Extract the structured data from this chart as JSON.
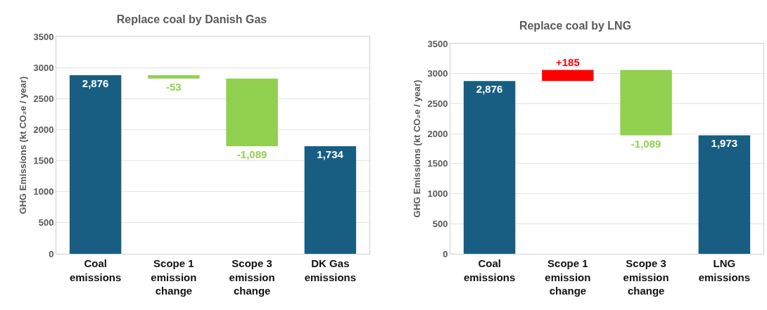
{
  "chart_data": [
    {
      "type": "bar",
      "title": "Replace coal by Danish Gas",
      "ylabel": "GHG Emissions (kt CO₂e / year)",
      "categories": [
        "Coal emissions",
        "Scope 1 emission change",
        "Scope 3 emission change",
        "DK Gas emissions"
      ],
      "values": [
        2876,
        -53,
        -1089,
        1734
      ],
      "base": [
        0,
        2876,
        2823,
        0
      ],
      "colors": [
        "#175e82",
        "#92d050",
        "#92d050",
        "#175e82"
      ],
      "value_labels": [
        "2,876",
        "-53",
        "-1,089",
        "1,734"
      ],
      "ylim": [
        0,
        3500
      ],
      "yticks": [
        0,
        500,
        1000,
        1500,
        2000,
        2500,
        3000,
        3500
      ],
      "grid": "y"
    },
    {
      "type": "bar",
      "title": "Replace coal by LNG",
      "ylabel": "GHG Emissions (kt CO₂e / year)",
      "categories": [
        "Coal emissions",
        "Scope 1 emission change",
        "Scope 3 emission change",
        "LNG emissions"
      ],
      "values": [
        2876,
        185,
        -1089,
        1973
      ],
      "base": [
        0,
        2876,
        3061,
        0
      ],
      "colors": [
        "#175e82",
        "#ff0000",
        "#92d050",
        "#175e82"
      ],
      "value_labels": [
        "2,876",
        "+185",
        "-1,089",
        "1,973"
      ],
      "ylim": [
        0,
        3500
      ],
      "yticks": [
        0,
        500,
        1000,
        1500,
        2000,
        2500,
        3000,
        3500
      ],
      "grid": "y"
    }
  ]
}
